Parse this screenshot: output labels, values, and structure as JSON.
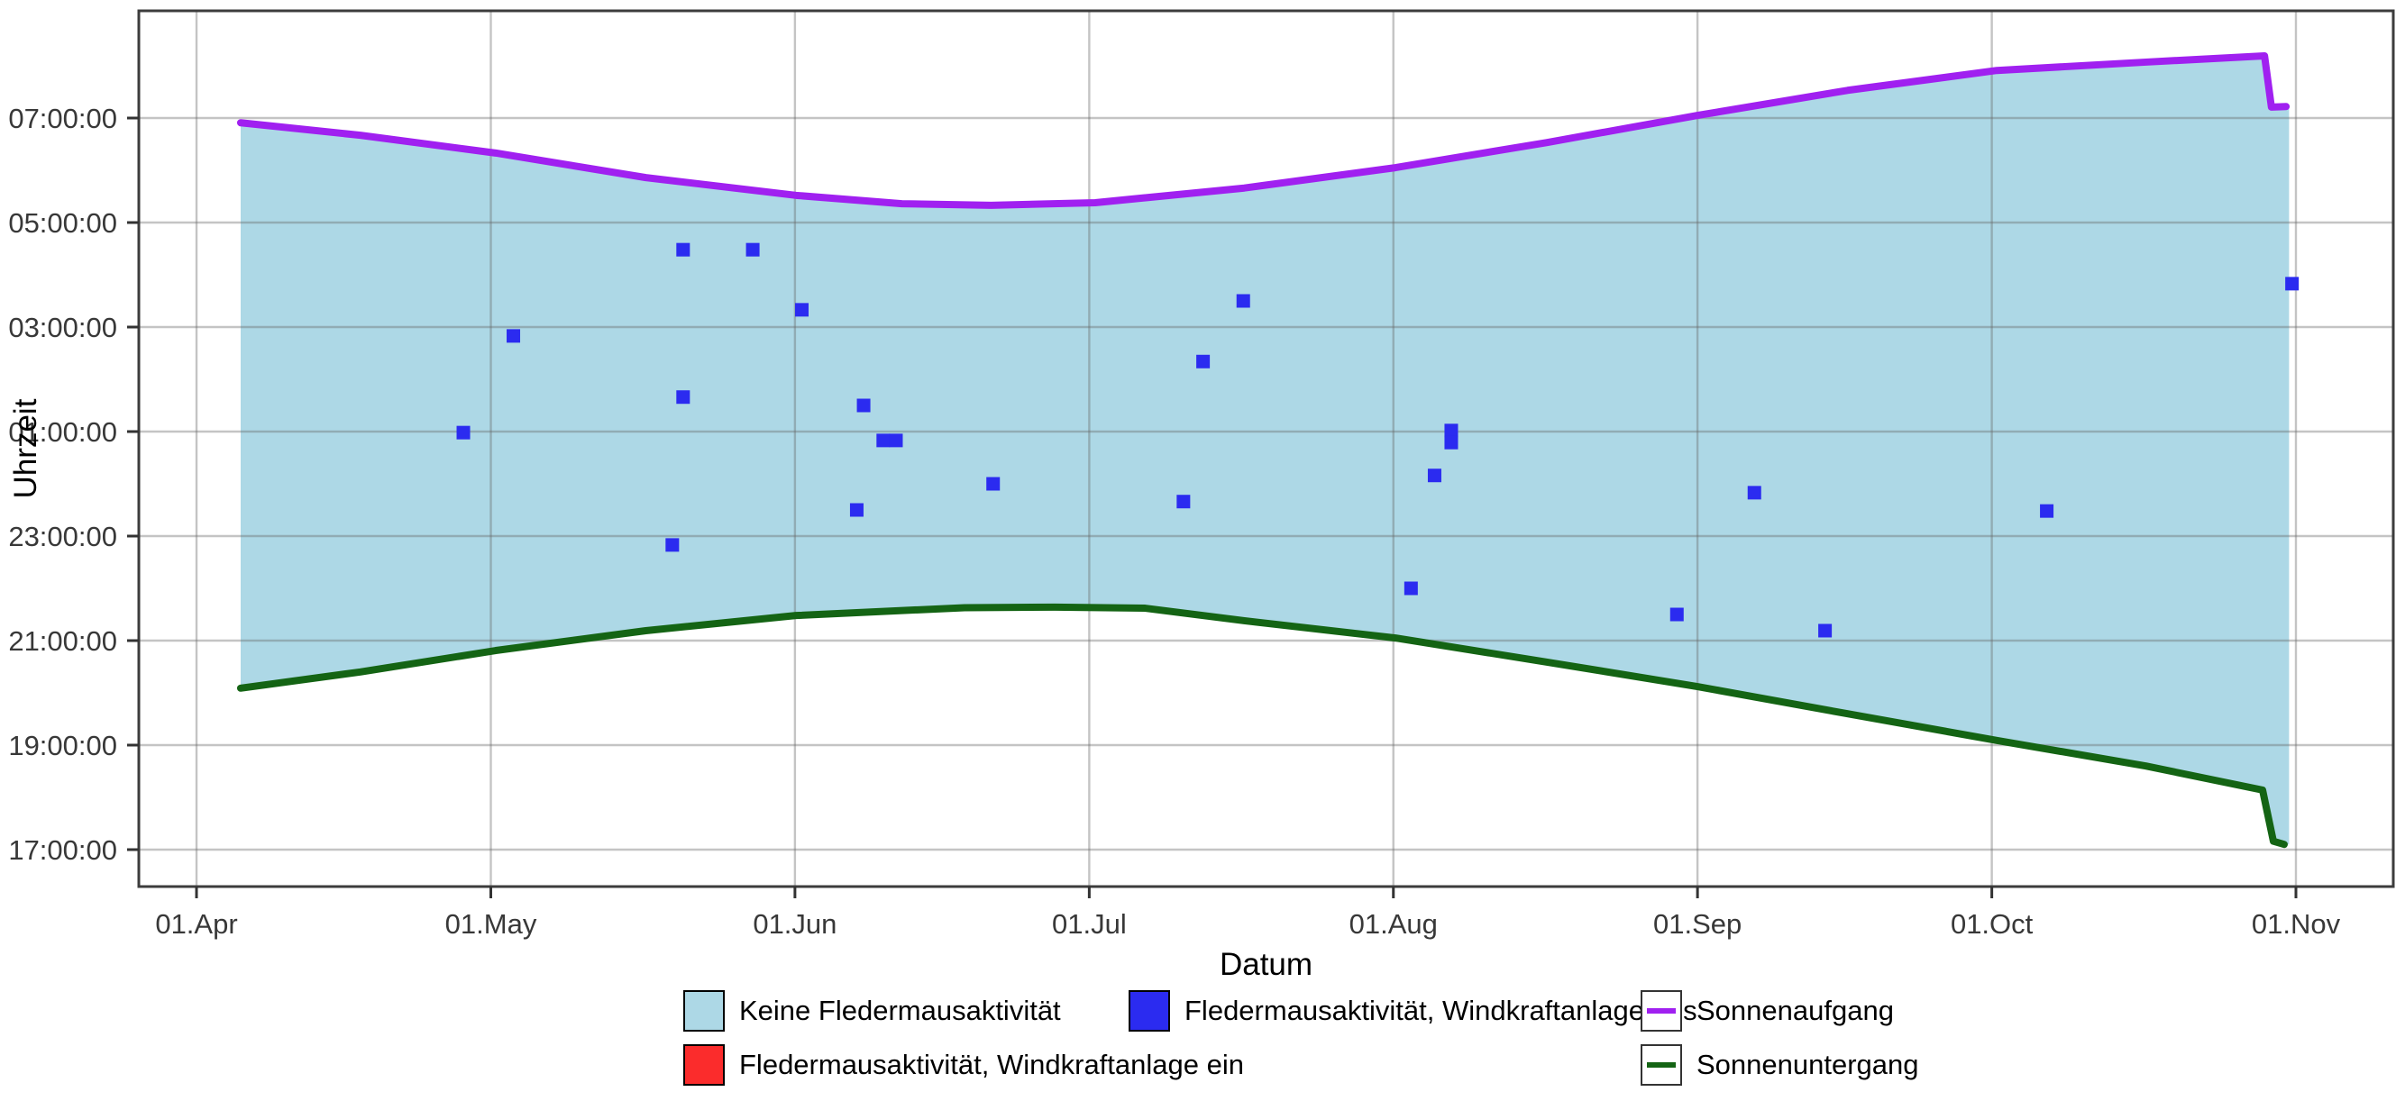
{
  "figure": {
    "xlabel": "Datum",
    "ylabel": "Uhrzeit"
  },
  "legend": {
    "items": [
      {
        "id": "no-activity",
        "type": "fill",
        "label": "Keine Fledermausaktivität",
        "color": "#ADD8E6",
        "col": 0,
        "row": 0
      },
      {
        "id": "activity-on",
        "type": "fill",
        "label": "Fledermausaktivität, Windkraftanlage ein",
        "color": "#FB2C2C",
        "col": 0,
        "row": 1
      },
      {
        "id": "activity-off",
        "type": "fill",
        "label": "Fledermausaktivität, Windkraftanlage aus",
        "color": "#2B2BF0",
        "col": 1,
        "row": 0
      },
      {
        "id": "sunrise",
        "type": "line",
        "label": "Sonnenaufgang",
        "color": "#A020F0",
        "col": 2,
        "row": 0
      },
      {
        "id": "sunset",
        "type": "line",
        "label": "Sonnenuntergang",
        "color": "#146414",
        "col": 2,
        "row": 1
      }
    ]
  },
  "chart_data": {
    "type": "area",
    "title": "",
    "xlabel": "Datum",
    "ylabel": "Uhrzeit",
    "grid": true,
    "legend_position": "bottom",
    "x_axis": {
      "unit": "days since 01.Apr",
      "range": [
        -5.9,
        223.9
      ],
      "ticks": [
        {
          "label": "01.Apr",
          "day": 0
        },
        {
          "label": "01.May",
          "day": 30
        },
        {
          "label": "01.Jun",
          "day": 61
        },
        {
          "label": "01.Jul",
          "day": 91
        },
        {
          "label": "01.Aug",
          "day": 122
        },
        {
          "label": "01.Sep",
          "day": 153
        },
        {
          "label": "01.Oct",
          "day": 183
        },
        {
          "label": "01.Nov",
          "day": 214
        }
      ]
    },
    "y_axis": {
      "unit": "hour of night (17 = 17:00:00, 31 = 07:00:00 next morning)",
      "range": [
        16.29,
        33.05
      ],
      "ticks": [
        {
          "label": "07:00:00",
          "hour": 31
        },
        {
          "label": "05:00:00",
          "hour": 29
        },
        {
          "label": "03:00:00",
          "hour": 27
        },
        {
          "label": "01:00:00",
          "hour": 25
        },
        {
          "label": "23:00:00",
          "hour": 23
        },
        {
          "label": "21:00:00",
          "hour": 21
        },
        {
          "label": "19:00:00",
          "hour": 19
        },
        {
          "label": "17:00:00",
          "hour": 17
        }
      ]
    },
    "band": {
      "name": "Keine Fledermausaktivität",
      "color": "#ADD8E6",
      "x_start_day": 4.5,
      "x_end_day": 213.3
    },
    "series": [
      {
        "name": "Sonnenaufgang",
        "color": "#A020F0",
        "points": [
          [
            4.5,
            30.91
          ],
          [
            16.7,
            30.67
          ],
          [
            30.5,
            30.33
          ],
          [
            45.8,
            29.86
          ],
          [
            61.1,
            29.52
          ],
          [
            71.9,
            29.36
          ],
          [
            81.0,
            29.33
          ],
          [
            91.6,
            29.38
          ],
          [
            106.8,
            29.66
          ],
          [
            122.2,
            30.05
          ],
          [
            137.6,
            30.53
          ],
          [
            153.0,
            31.05
          ],
          [
            168.3,
            31.53
          ],
          [
            183.5,
            31.91
          ],
          [
            198.7,
            32.07
          ],
          [
            210.8,
            32.19
          ],
          [
            211.5,
            31.21
          ],
          [
            213.0,
            31.22
          ]
        ]
      },
      {
        "name": "Sonnenuntergang",
        "color": "#146414",
        "points": [
          [
            4.5,
            20.09
          ],
          [
            16.7,
            20.4
          ],
          [
            30.5,
            20.81
          ],
          [
            45.8,
            21.19
          ],
          [
            61.1,
            21.48
          ],
          [
            78.3,
            21.63
          ],
          [
            87.5,
            21.64
          ],
          [
            96.7,
            21.62
          ],
          [
            106.8,
            21.38
          ],
          [
            122.2,
            21.05
          ],
          [
            137.6,
            20.59
          ],
          [
            153.0,
            20.12
          ],
          [
            168.3,
            19.6
          ],
          [
            183.5,
            19.09
          ],
          [
            198.7,
            18.6
          ],
          [
            210.6,
            18.14
          ],
          [
            211.7,
            17.16
          ],
          [
            212.8,
            17.1
          ]
        ]
      }
    ],
    "scatter": [
      {
        "name": "Fledermausaktivität, Windkraftanlage aus",
        "color": "#2B2BF0",
        "marker": "square",
        "points": [
          [
            49.6,
            28.48
          ],
          [
            56.7,
            28.48
          ],
          [
            61.7,
            27.33
          ],
          [
            106.7,
            27.5
          ],
          [
            213.6,
            27.83
          ],
          [
            32.3,
            26.83
          ],
          [
            102.6,
            26.34
          ],
          [
            49.6,
            25.66
          ],
          [
            68.0,
            25.5
          ],
          [
            27.2,
            24.98
          ],
          [
            127.9,
            25.02
          ],
          [
            127.9,
            24.79
          ],
          [
            70.0,
            24.83
          ],
          [
            71.3,
            24.83
          ],
          [
            126.2,
            24.16
          ],
          [
            81.2,
            24.0
          ],
          [
            100.6,
            23.66
          ],
          [
            67.3,
            23.5
          ],
          [
            158.8,
            23.83
          ],
          [
            188.6,
            23.48
          ],
          [
            48.5,
            22.83
          ],
          [
            123.8,
            22.0
          ],
          [
            150.9,
            21.5
          ],
          [
            166.0,
            21.19
          ]
        ]
      },
      {
        "name": "Fledermausaktivität, Windkraftanlage ein",
        "color": "#FB2C2C",
        "marker": "square",
        "points": []
      }
    ],
    "style": {
      "grid_color": "rgba(100,100,100,0.38)",
      "panel_border_color": "#3c3c3c",
      "tick_color": "#333333",
      "tick_label_color": "#383838",
      "axis_title_color": "#000000"
    }
  }
}
